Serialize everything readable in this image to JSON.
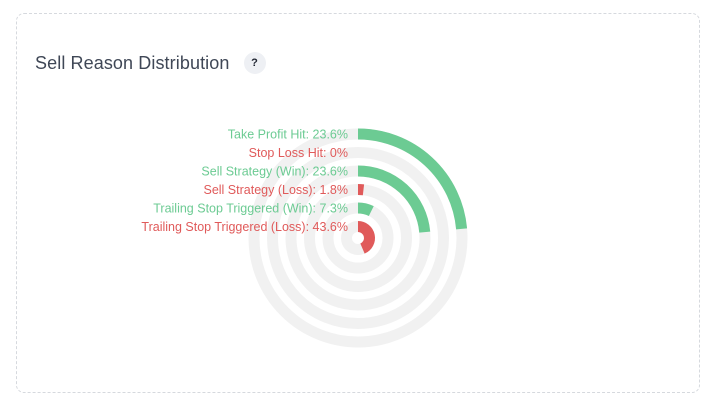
{
  "card": {
    "title": "Sell Reason Distribution",
    "help_label": "?"
  },
  "colors": {
    "win": "#6ccb93",
    "loss": "#e05a5a",
    "track": "#f1f1f1"
  },
  "chart_data": {
    "type": "radial-bar",
    "title": "Sell Reason Distribution",
    "max": 100,
    "unit": "%",
    "series": [
      {
        "name": "Take Profit Hit",
        "value": 23.6,
        "label": "Take Profit Hit: 23.6%",
        "kind": "win"
      },
      {
        "name": "Stop Loss Hit",
        "value": 0,
        "label": "Stop Loss Hit: 0%",
        "kind": "loss"
      },
      {
        "name": "Sell Strategy (Win)",
        "value": 23.6,
        "label": "Sell Strategy (Win): 23.6%",
        "kind": "win"
      },
      {
        "name": "Sell Strategy (Loss)",
        "value": 1.8,
        "label": "Sell Strategy (Loss): 1.8%",
        "kind": "loss"
      },
      {
        "name": "Trailing Stop Triggered (Win)",
        "value": 7.3,
        "label": "Trailing Stop Triggered (Win): 7.3%",
        "kind": "win"
      },
      {
        "name": "Trailing Stop Triggered (Loss)",
        "value": 43.6,
        "label": "Trailing Stop Triggered (Loss): 43.6%",
        "kind": "loss"
      }
    ]
  }
}
